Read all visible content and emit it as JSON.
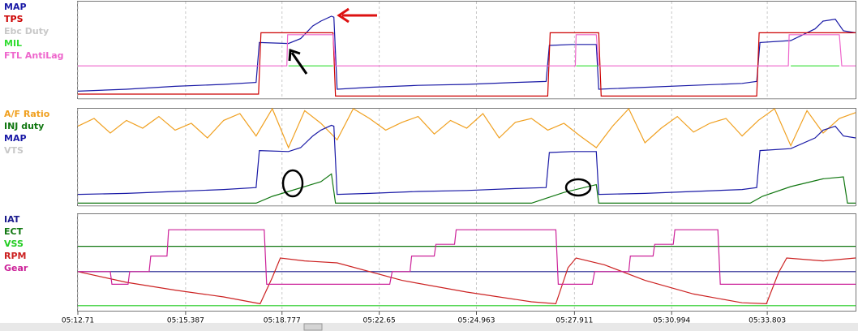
{
  "chart_data": [
    {
      "type": "line",
      "xlim": [
        0,
        960
      ],
      "ylim": [
        0,
        100
      ],
      "series": [
        {
          "name": "MAP",
          "color": "#1a1aa6",
          "x": [
            0,
            60,
            120,
            180,
            220,
            224,
            260,
            275,
            290,
            300,
            313,
            316,
            320,
            360,
            420,
            480,
            540,
            578,
            582,
            610,
            640,
            643,
            700,
            760,
            820,
            838,
            842,
            880,
            910,
            920,
            935,
            945,
            960
          ],
          "values": [
            8,
            10,
            13,
            15,
            17,
            58,
            57,
            62,
            75,
            80,
            85,
            84,
            10,
            12,
            14,
            15,
            17,
            18,
            55,
            56,
            56,
            10,
            12,
            14,
            16,
            18,
            58,
            60,
            72,
            80,
            82,
            70,
            68
          ]
        },
        {
          "name": "TPS",
          "color": "#cc0000",
          "x": [
            0,
            223,
            226,
            315,
            318,
            580,
            583,
            643,
            646,
            838,
            841,
            960
          ],
          "values": [
            5,
            5,
            68,
            68,
            3,
            3,
            68,
            68,
            3,
            3,
            68,
            68
          ]
        },
        {
          "name": "Ebc Duty",
          "color": "#c8c8c8",
          "x": [
            0,
            960
          ],
          "values": [
            0,
            0
          ]
        },
        {
          "name": "MIL",
          "color": "#33dd33",
          "x": [
            260,
            315,
            316,
            615,
            643,
            644,
            880,
            940
          ],
          "values": [
            34,
            34,
            null,
            34,
            34,
            null,
            34,
            34
          ]
        },
        {
          "name": "FTL AntiLag",
          "color": "#ee66cc",
          "x": [
            0,
            258,
            259,
            315,
            318,
            614,
            615,
            640,
            643,
            877,
            878,
            940,
            943,
            960
          ],
          "values": [
            34,
            34,
            66,
            66,
            34,
            34,
            66,
            66,
            34,
            34,
            66,
            66,
            34,
            34
          ]
        }
      ]
    },
    {
      "type": "line",
      "xlim": [
        0,
        960
      ],
      "ylim": [
        0,
        100
      ],
      "series": [
        {
          "name": "A/F Ratio",
          "color": "#f0a020",
          "x": [
            0,
            20,
            40,
            60,
            80,
            100,
            120,
            140,
            160,
            180,
            200,
            220,
            240,
            260,
            280,
            300,
            320,
            340,
            360,
            380,
            400,
            420,
            440,
            460,
            480,
            500,
            520,
            540,
            560,
            580,
            600,
            620,
            640,
            660,
            680,
            700,
            720,
            740,
            760,
            780,
            800,
            820,
            840,
            860,
            880,
            900,
            920,
            940,
            960
          ],
          "values": [
            82,
            90,
            75,
            88,
            80,
            92,
            78,
            85,
            70,
            88,
            95,
            72,
            100,
            60,
            98,
            85,
            68,
            100,
            90,
            78,
            86,
            92,
            74,
            88,
            80,
            95,
            70,
            86,
            90,
            78,
            85,
            72,
            60,
            82,
            100,
            65,
            80,
            92,
            76,
            85,
            90,
            72,
            88,
            100,
            62,
            98,
            75,
            90,
            96
          ]
        },
        {
          "name": "INJ duty",
          "color": "#117711",
          "x": [
            0,
            220,
            240,
            260,
            300,
            313,
            318,
            560,
            578,
            600,
            640,
            643,
            830,
            845,
            880,
            920,
            945,
            950,
            960
          ],
          "values": [
            3,
            3,
            10,
            15,
            25,
            33,
            3,
            3,
            8,
            14,
            22,
            3,
            3,
            10,
            20,
            28,
            30,
            3,
            3
          ]
        },
        {
          "name": "MAP",
          "color": "#1a1aa6",
          "x": [
            0,
            60,
            120,
            180,
            220,
            224,
            260,
            275,
            290,
            300,
            313,
            316,
            320,
            360,
            420,
            480,
            540,
            578,
            582,
            610,
            640,
            643,
            700,
            760,
            820,
            838,
            842,
            880,
            910,
            920,
            935,
            945,
            960
          ],
          "values": [
            12,
            13,
            15,
            17,
            19,
            57,
            56,
            60,
            72,
            78,
            83,
            82,
            12,
            13,
            15,
            16,
            18,
            19,
            55,
            56,
            56,
            12,
            13,
            15,
            17,
            19,
            57,
            59,
            70,
            78,
            82,
            72,
            70
          ]
        },
        {
          "name": "VTS",
          "color": "#c8c8c8",
          "x": [
            0,
            960
          ],
          "values": [
            0,
            0
          ]
        }
      ]
    },
    {
      "type": "line",
      "xlim": [
        0,
        960
      ],
      "ylim": [
        0,
        100
      ],
      "xticks": [
        {
          "value": 0,
          "label": "05:12.71"
        },
        {
          "value": 133,
          "label": "05:15.387"
        },
        {
          "value": 252,
          "label": "05:18.777"
        },
        {
          "value": 372,
          "label": "05:22.65"
        },
        {
          "value": 492,
          "label": "05:24.963"
        },
        {
          "value": 613,
          "label": "05:27.911"
        },
        {
          "value": 733,
          "label": "05:30.994"
        },
        {
          "value": 851,
          "label": "05:33.803"
        }
      ],
      "series": [
        {
          "name": "IAT",
          "color": "#1a1a8c",
          "x": [
            0,
            960
          ],
          "values": [
            41,
            41
          ]
        },
        {
          "name": "ECT",
          "color": "#117711",
          "x": [
            0,
            960
          ],
          "values": [
            67,
            67
          ]
        },
        {
          "name": "VSS",
          "color": "#22cc22",
          "x": [
            0,
            960
          ],
          "values": [
            6,
            6
          ]
        },
        {
          "name": "RPM",
          "color": "#cc2222",
          "x": [
            0,
            60,
            120,
            180,
            225,
            240,
            250,
            280,
            320,
            400,
            480,
            560,
            590,
            605,
            615,
            650,
            700,
            760,
            820,
            850,
            865,
            875,
            920,
            960
          ],
          "values": [
            41,
            30,
            22,
            15,
            8,
            35,
            55,
            52,
            50,
            32,
            20,
            10,
            8,
            45,
            55,
            48,
            32,
            18,
            9,
            8,
            40,
            55,
            52,
            55
          ]
        },
        {
          "name": "Gear",
          "color": "#cc2299",
          "x": [
            0,
            40,
            42,
            62,
            64,
            88,
            90,
            110,
            112,
            230,
            233,
            385,
            388,
            410,
            412,
            440,
            442,
            465,
            467,
            590,
            593,
            635,
            638,
            680,
            682,
            710,
            712,
            735,
            737,
            790,
            793,
            960
          ],
          "values": [
            41,
            41,
            28,
            28,
            41,
            41,
            57,
            57,
            84,
            84,
            28,
            28,
            41,
            41,
            57,
            57,
            69,
            69,
            84,
            84,
            28,
            28,
            41,
            41,
            57,
            57,
            69,
            69,
            84,
            84,
            28,
            28
          ]
        }
      ]
    }
  ]
}
